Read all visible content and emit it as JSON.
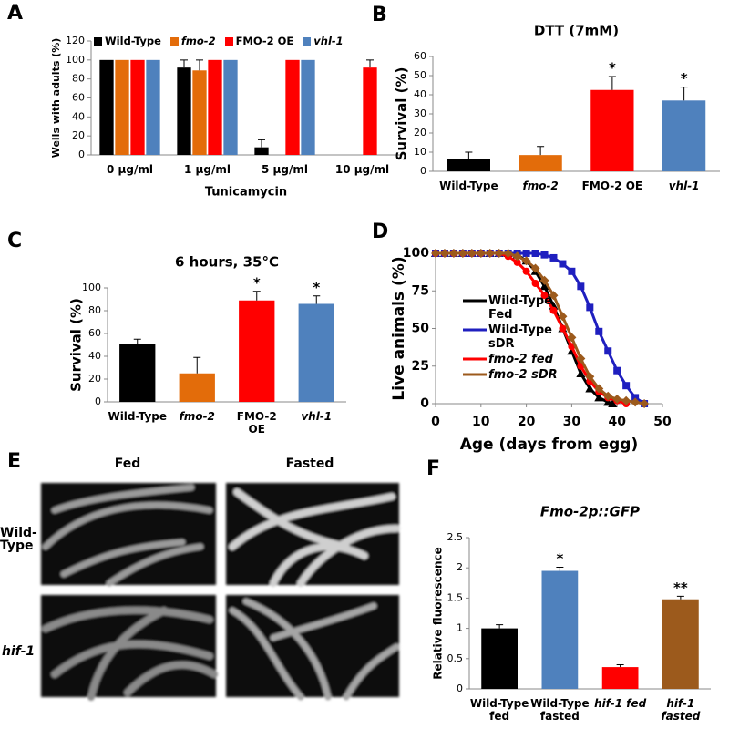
{
  "panel_labels": [
    "A",
    "B",
    "C",
    "D",
    "E",
    "F"
  ],
  "images": {
    "columns": [
      "Fed",
      "Fasted"
    ],
    "rows": [
      "Wild-Type",
      "hif-1"
    ]
  },
  "chart_data": [
    {
      "type": "grouped-bar",
      "x_label": "Tunicamycin",
      "y_label": "Wells with adults (%)",
      "categories": [
        "0 µg/ml",
        "1 µg/ml",
        "5 µg/ml",
        "10 µg/ml"
      ],
      "series": [
        {
          "name": "Wild-Type",
          "color": "#000000",
          "italic": false,
          "values": [
            100,
            92,
            8,
            0
          ],
          "errors": [
            0,
            8,
            8,
            0
          ]
        },
        {
          "name": "fmo-2",
          "color": "#e36c0a",
          "italic": true,
          "values": [
            100,
            89,
            0,
            0
          ],
          "errors": [
            0,
            11,
            0,
            0
          ]
        },
        {
          "name": "FMO-2 OE",
          "color": "#ff0000",
          "italic": false,
          "values": [
            100,
            100,
            100,
            92
          ],
          "errors": [
            0,
            0,
            0,
            8
          ]
        },
        {
          "name": "vhl-1",
          "color": "#4f81bd",
          "italic": true,
          "values": [
            100,
            100,
            100,
            0
          ],
          "errors": [
            0,
            0,
            0,
            0
          ]
        }
      ],
      "ylim": [
        0,
        120
      ],
      "yticks": [
        0,
        20,
        40,
        60,
        80,
        100,
        120
      ]
    },
    {
      "type": "bar",
      "title": "DTT (7mM)",
      "y_label": "Survival (%)",
      "categories": [
        "Wild-Type",
        "fmo-2",
        "FMO-2 OE",
        "vhl-1"
      ],
      "italic": [
        false,
        true,
        false,
        true
      ],
      "values": [
        6.5,
        8.5,
        42.5,
        37
      ],
      "errors": [
        3.5,
        4.5,
        7,
        7
      ],
      "colors": [
        "#000000",
        "#e36c0a",
        "#ff0000",
        "#4f81bd"
      ],
      "annotations": [
        {
          "index": 2,
          "text": "*"
        },
        {
          "index": 3,
          "text": "*"
        }
      ],
      "ylim": [
        0,
        60
      ],
      "yticks": [
        0,
        10,
        20,
        30,
        40,
        50,
        60
      ]
    },
    {
      "type": "bar",
      "title": "6 hours, 35°C",
      "y_label": "Survival (%)",
      "categories": [
        "Wild-Type",
        "fmo-2",
        "FMO-2 OE",
        "vhl-1"
      ],
      "italic": [
        false,
        true,
        false,
        true
      ],
      "values": [
        51,
        25,
        89,
        86
      ],
      "errors": [
        4,
        14,
        8,
        7
      ],
      "colors": [
        "#000000",
        "#e36c0a",
        "#ff0000",
        "#4f81bd"
      ],
      "annotations": [
        {
          "index": 2,
          "text": "*"
        },
        {
          "index": 3,
          "text": "*"
        }
      ],
      "ylim": [
        0,
        100
      ],
      "yticks": [
        0,
        20,
        40,
        60,
        80,
        100
      ]
    },
    {
      "type": "line",
      "x_label": "Age (days from egg)",
      "y_label": "Live animals (%)",
      "series": [
        {
          "name": "Wild-Type Fed",
          "color": "#000000",
          "marker": "triangle",
          "italic": false,
          "x": [
            0,
            2,
            4,
            6,
            8,
            10,
            12,
            14,
            16,
            18,
            20,
            22,
            24,
            26,
            28,
            30,
            32,
            34,
            36,
            38,
            39
          ],
          "values": [
            100,
            100,
            100,
            100,
            100,
            100,
            100,
            100,
            100,
            99,
            95,
            88,
            78,
            65,
            50,
            35,
            20,
            10,
            4,
            1,
            0
          ]
        },
        {
          "name": "Wild-Type sDR",
          "color": "#1f1fbf",
          "marker": "square",
          "italic": false,
          "x": [
            0,
            2,
            4,
            6,
            8,
            10,
            12,
            14,
            16,
            18,
            20,
            22,
            24,
            26,
            28,
            30,
            32,
            34,
            36,
            38,
            40,
            42,
            44,
            46
          ],
          "values": [
            100,
            100,
            100,
            100,
            100,
            100,
            100,
            100,
            100,
            100,
            100,
            100,
            99,
            97,
            93,
            88,
            78,
            64,
            48,
            35,
            22,
            12,
            4,
            0
          ]
        },
        {
          "name": "fmo-2 fed",
          "color": "#ff0000",
          "marker": "circle",
          "italic": true,
          "x": [
            0,
            2,
            4,
            6,
            8,
            10,
            12,
            14,
            16,
            18,
            20,
            22,
            24,
            26,
            28,
            30,
            32,
            34,
            36,
            38,
            40,
            42
          ],
          "values": [
            100,
            100,
            100,
            100,
            100,
            100,
            100,
            100,
            98,
            94,
            88,
            80,
            72,
            62,
            50,
            38,
            25,
            15,
            8,
            4,
            2,
            0
          ]
        },
        {
          "name": "fmo-2 sDR",
          "color": "#9c5a1c",
          "marker": "diamond",
          "italic": true,
          "x": [
            0,
            2,
            4,
            6,
            8,
            10,
            12,
            14,
            16,
            18,
            20,
            22,
            24,
            26,
            28,
            30,
            32,
            34,
            36,
            38,
            40,
            42,
            44,
            46
          ],
          "values": [
            100,
            100,
            100,
            100,
            100,
            100,
            100,
            100,
            100,
            98,
            95,
            90,
            82,
            72,
            58,
            44,
            30,
            18,
            10,
            5,
            3,
            2,
            1,
            0
          ]
        }
      ],
      "xlim": [
        0,
        50
      ],
      "xticks": [
        0,
        10,
        20,
        30,
        40,
        50
      ],
      "ylim": [
        0,
        100
      ],
      "yticks": [
        0,
        25,
        50,
        75,
        100
      ]
    },
    {
      "type": "bar",
      "title": "Fmo-2p::GFP",
      "title_italic": true,
      "y_label": "Relative fluorescence",
      "categories": [
        "Wild-Type fed",
        "Wild-Type fasted",
        "hif-1 fed",
        "hif-1 fasted"
      ],
      "italic": [
        false,
        false,
        true,
        true
      ],
      "values": [
        1.0,
        1.95,
        0.36,
        1.48
      ],
      "errors": [
        0.06,
        0.06,
        0.04,
        0.05
      ],
      "colors": [
        "#000000",
        "#4f81bd",
        "#ff0000",
        "#9c5a1c"
      ],
      "annotations": [
        {
          "index": 1,
          "text": "*"
        },
        {
          "index": 3,
          "text": "**"
        }
      ],
      "ylim": [
        0,
        2.5
      ],
      "yticks": [
        0,
        0.5,
        1,
        1.5,
        2,
        2.5
      ]
    }
  ]
}
